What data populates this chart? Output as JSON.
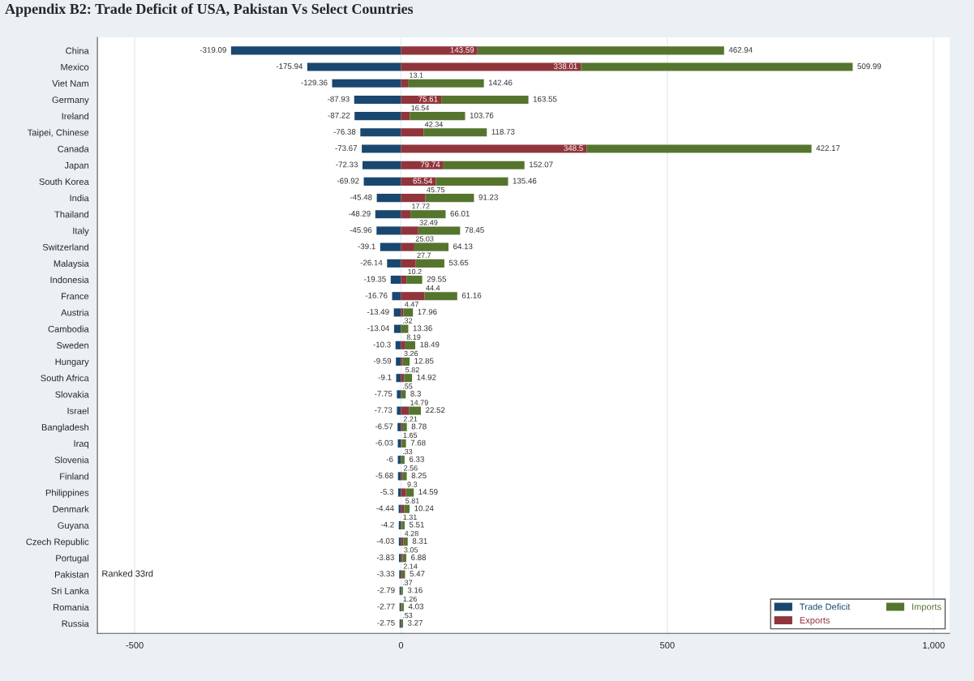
{
  "chart_data": {
    "type": "bar",
    "orientation": "horizontal",
    "stacked": true,
    "title": "Appendix B2: Trade Deficit of USA, Pakistan Vs Select Countries",
    "categories": [
      "China",
      "Mexico",
      "Viet Nam",
      "Germany",
      "Ireland",
      "Taipei, Chinese",
      "Canada",
      "Japan",
      "South Korea",
      "India",
      "Thailand",
      "Italy",
      "Switzerland",
      "Malaysia",
      "Indonesia",
      "France",
      "Austria",
      "Cambodia",
      "Sweden",
      "Hungary",
      "South Africa",
      "Slovakia",
      "Israel",
      "Bangladesh",
      "Iraq",
      "Slovenia",
      "Finland",
      "Philippines",
      "Denmark",
      "Guyana",
      "Czech Republic",
      "Portugal",
      "Pakistan",
      "Sri Lanka",
      "Romania",
      "Russia"
    ],
    "series": [
      {
        "name": "Trade Deficit",
        "color": "#1a476f",
        "values": [
          -319.09,
          -175.94,
          -129.36,
          -87.93,
          -87.22,
          -76.38,
          -73.67,
          -72.33,
          -69.92,
          -45.48,
          -48.29,
          -45.96,
          -39.1,
          -26.14,
          -19.35,
          -16.76,
          -13.49,
          -13.04,
          -10.3,
          -9.59,
          -9.1,
          -7.75,
          -7.73,
          -6.57,
          -6.03,
          -6,
          -5.68,
          -5.3,
          -4.44,
          -4.2,
          -4.03,
          -3.83,
          -3.33,
          -2.79,
          -2.77,
          -2.75
        ],
        "value_labels": [
          "-319.09",
          "-175.94",
          "-129.36",
          "-87.93",
          "-87.22",
          "-76.38",
          "-73.67",
          "-72.33",
          "-69.92",
          "-45.48",
          "-48.29",
          "-45.96",
          "-39.1",
          "-26.14",
          "-19.35",
          "-16.76",
          "-13.49",
          "-13.04",
          "-10.3",
          "-9.59",
          "-9.1",
          "-7.75",
          "-7.73",
          "-6.57",
          "-6.03",
          "-6",
          "-5.68",
          "-5.3",
          "-4.44",
          "-4.2",
          "-4.03",
          "-3.83",
          "-3.33",
          "-2.79",
          "-2.77",
          "-2.75"
        ]
      },
      {
        "name": "Exports",
        "color": "#90353b",
        "values": [
          143.59,
          338.01,
          13.1,
          75.61,
          16.54,
          42.34,
          348.5,
          79.74,
          65.54,
          45.75,
          17.72,
          32.49,
          25.03,
          27.7,
          10.2,
          44.4,
          4.47,
          0.32,
          8.19,
          3.26,
          5.82,
          0.55,
          14.79,
          2.21,
          1.65,
          0.33,
          2.56,
          9.3,
          5.81,
          1.31,
          4.28,
          3.05,
          2.14,
          0.37,
          1.26,
          0.53
        ],
        "value_labels": [
          "143.59",
          "338.01",
          "13.1",
          "75.61",
          "16.54",
          "42.34",
          "348.5",
          "79.74",
          "65.54",
          "45.75",
          "17.72",
          "32.49",
          "25.03",
          "27.7",
          "10.2",
          "44.4",
          "4.47",
          ".32",
          "8.19",
          "3.26",
          "5.82",
          ".55",
          "14.79",
          "2.21",
          "1.65",
          ".33",
          "2.56",
          "9.3",
          "5.81",
          "1.31",
          "4.28",
          "3.05",
          "2.14",
          ".37",
          "1.26",
          ".53"
        ]
      },
      {
        "name": "Imports",
        "color": "#55752f",
        "values": [
          462.94,
          509.99,
          142.46,
          163.55,
          103.76,
          118.73,
          422.17,
          152.07,
          135.46,
          91.23,
          66.01,
          78.45,
          64.13,
          53.65,
          29.55,
          61.16,
          17.96,
          13.36,
          18.49,
          12.85,
          14.92,
          8.3,
          22.52,
          8.78,
          7.68,
          6.33,
          8.25,
          14.59,
          10.24,
          5.51,
          8.31,
          6.88,
          5.47,
          3.16,
          4.03,
          3.27
        ],
        "value_labels": [
          "462.94",
          "509.99",
          "142.46",
          "163.55",
          "103.76",
          "118.73",
          "422.17",
          "152.07",
          "135.46",
          "91.23",
          "66.01",
          "78.45",
          "64.13",
          "53.65",
          "29.55",
          "61.16",
          "17.96",
          "13.36",
          "18.49",
          "12.85",
          "14.92",
          "8.3",
          "22.52",
          "8.78",
          "7.68",
          "6.33",
          "8.25",
          "14.59",
          "10.24",
          "5.51",
          "8.31",
          "6.88",
          "5.47",
          "3.16",
          "4.03",
          "3.27"
        ]
      }
    ],
    "xlim": [
      -570,
      1030
    ],
    "xticks": [
      -500,
      0,
      500,
      {
        "value": 1000,
        "label": "1,000"
      }
    ],
    "grid": "x",
    "legend": "bottom right",
    "annotations": [
      "Ranked 33rd"
    ]
  }
}
